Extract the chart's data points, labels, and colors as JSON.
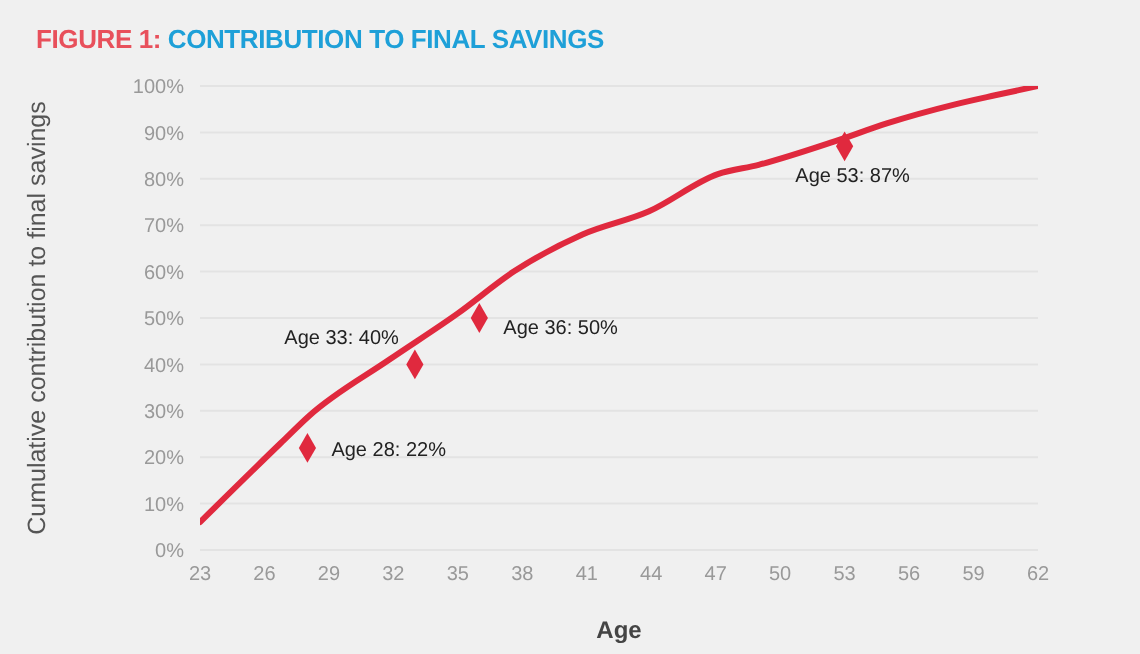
{
  "chart_data": {
    "type": "line",
    "title": "FIGURE 1: CONTRIBUTION TO FINAL SAVINGS",
    "xlabel": "Age",
    "ylabel": "Cumulative contribution to final savings",
    "series": [
      {
        "color": "#e0293e",
        "x": [
          23,
          26.75,
          28.1,
          31.8,
          35,
          37.6,
          40.8,
          43.9,
          47.1,
          49,
          52.5,
          55,
          58.1,
          60,
          62
        ],
        "values": [
          6,
          23,
          29,
          41,
          51,
          60,
          68,
          73,
          81,
          83,
          88,
          92,
          96,
          98,
          100
        ]
      },
      {
        "type": "scatter",
        "color": "#e0293e",
        "marker": "diamond",
        "x": [
          28,
          33,
          36,
          53
        ],
        "values": [
          22,
          40,
          50,
          87
        ]
      }
    ],
    "annotations": [
      {
        "text": "Age 28: 22%",
        "x": 28,
        "y": 22
      },
      {
        "text": "Age 33: 40%",
        "x": 33,
        "y": 40
      },
      {
        "text": "Age 36: 50%",
        "x": 36,
        "y": 50
      },
      {
        "text": "Age 53: 87%",
        "x": 53,
        "y": 87
      }
    ],
    "xlim": [
      23,
      62
    ],
    "xticks": [
      23,
      26,
      29,
      32,
      35,
      38,
      41,
      44,
      47,
      50,
      53,
      56,
      59,
      62
    ],
    "ylim": [
      0,
      100
    ],
    "yticks": [
      {
        "value": 0,
        "label": "0%"
      },
      {
        "value": 10,
        "label": "10%"
      },
      {
        "value": 20,
        "label": "20%"
      },
      {
        "value": 30,
        "label": "30%"
      },
      {
        "value": 40,
        "label": "40%"
      },
      {
        "value": 50,
        "label": "50%"
      },
      {
        "value": 60,
        "label": "60%"
      },
      {
        "value": 70,
        "label": "70%"
      },
      {
        "value": 80,
        "label": "80%"
      },
      {
        "value": 90,
        "label": "90%"
      },
      {
        "value": 100,
        "label": "100%"
      }
    ],
    "grid": "y",
    "line_style": "solid"
  }
}
